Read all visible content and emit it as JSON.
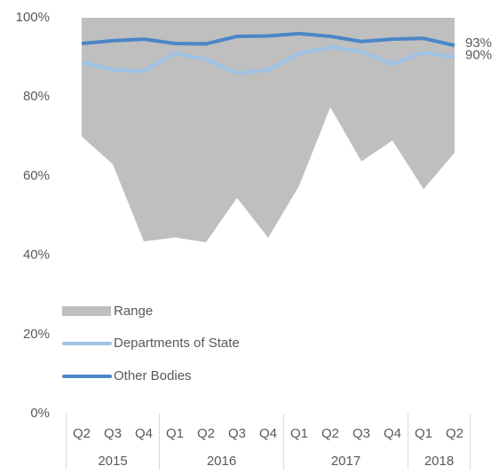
{
  "chart_data": {
    "type": "line",
    "categories": [
      "Q2",
      "Q3",
      "Q4",
      "Q1",
      "Q2",
      "Q3",
      "Q4",
      "Q1",
      "Q2",
      "Q3",
      "Q4",
      "Q1",
      "Q2"
    ],
    "groups": [
      {
        "label": "2015",
        "span": 3
      },
      {
        "label": "2016",
        "span": 4
      },
      {
        "label": "2017",
        "span": 4
      },
      {
        "label": "2018",
        "span": 2
      }
    ],
    "range": {
      "name": "Range",
      "color": "#bfbfbf",
      "high": [
        100,
        100,
        100,
        100,
        100,
        100,
        100,
        100,
        100,
        100,
        100,
        100,
        100
      ],
      "low": [
        70,
        63,
        43.5,
        44.5,
        43.3,
        54.5,
        44.4,
        57.6,
        77.4,
        63.7,
        69,
        56.7,
        65.9
      ]
    },
    "series": [
      {
        "name": "Departments of State",
        "color": "#9dc3e6",
        "values": [
          88.8,
          86.8,
          86.5,
          91,
          89.5,
          86,
          86.8,
          91,
          92.5,
          91.5,
          88.3,
          91.2,
          90
        ],
        "value_labels": [
          null,
          null,
          null,
          null,
          null,
          null,
          null,
          null,
          null,
          null,
          null,
          null,
          "90%"
        ]
      },
      {
        "name": "Other Bodies",
        "color": "#4a86c8",
        "values": [
          93.5,
          94.2,
          94.6,
          93.5,
          93.4,
          95.3,
          95.4,
          96,
          95.3,
          94,
          94.6,
          94.8,
          93
        ],
        "value_labels": [
          null,
          null,
          null,
          null,
          null,
          null,
          null,
          null,
          null,
          null,
          null,
          null,
          "93%"
        ]
      }
    ],
    "ylim": [
      0,
      100
    ],
    "yticks": [
      {
        "value": 0,
        "label": "0%"
      },
      {
        "value": 20,
        "label": "20%"
      },
      {
        "value": 40,
        "label": "40%"
      },
      {
        "value": 60,
        "label": "60%"
      },
      {
        "value": 80,
        "label": "80%"
      },
      {
        "value": 100,
        "label": "100%"
      }
    ]
  }
}
